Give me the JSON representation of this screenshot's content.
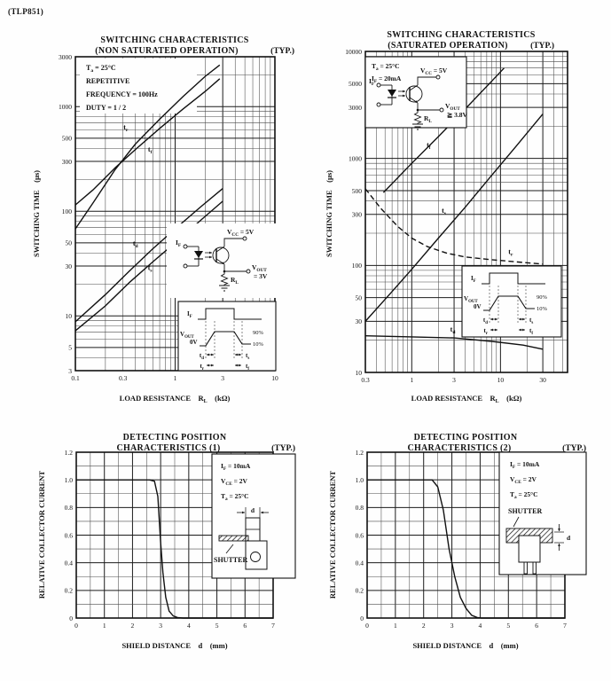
{
  "page": {
    "part_number": "(TLP851)"
  },
  "chart_data": [
    {
      "id": "switching-non-saturated",
      "type": "line",
      "title_lines": [
        "SWITCHING CHARACTERISTICS",
        "(NON SATURATED OPERATION)"
      ],
      "typ_label": "(TYP.)",
      "xlabel": "LOAD RESISTANCE  R_{L}  (kΩ)",
      "ylabel": "SWITCHING TIME  (μs)",
      "axes": {
        "x_scale": "log",
        "y_scale": "log",
        "xlim": [
          0.1,
          10
        ],
        "ylim": [
          3,
          3000
        ],
        "x_ticks": [
          [
            0.1,
            "0.1"
          ],
          [
            0.3,
            "0.3"
          ],
          [
            1,
            "1"
          ],
          [
            3,
            "3"
          ],
          [
            10,
            "10"
          ]
        ],
        "y_ticks": [
          [
            3,
            "3"
          ],
          [
            5,
            "5"
          ],
          [
            10,
            "10"
          ],
          [
            30,
            "30"
          ],
          [
            50,
            "50"
          ],
          [
            100,
            "100"
          ],
          [
            300,
            "300"
          ],
          [
            500,
            "500"
          ],
          [
            1000,
            "1000"
          ],
          [
            3000,
            "3000"
          ]
        ],
        "grid": "on"
      },
      "conditions": [
        "T_{a} = 25°C",
        "REPETITIVE",
        "FREQUENCY = 100Hz",
        "DUTY = 1 / 2"
      ],
      "series": [
        {
          "name": "t_{f}",
          "points": [
            [
              0.1,
              115
            ],
            [
              0.15,
              160
            ],
            [
              0.25,
              260
            ],
            [
              0.4,
              390
            ],
            [
              0.7,
              620
            ],
            [
              1.2,
              950
            ],
            [
              2,
              1400
            ],
            [
              2.8,
              1850
            ]
          ]
        },
        {
          "name": "t_{r}",
          "points": [
            [
              0.1,
              68
            ],
            [
              0.15,
              120
            ],
            [
              0.25,
              250
            ],
            [
              0.4,
              440
            ],
            [
              0.7,
              760
            ],
            [
              1.2,
              1250
            ],
            [
              2,
              1950
            ],
            [
              2.8,
              2500
            ]
          ]
        },
        {
          "name": "t_{d}",
          "points": [
            [
              0.1,
              8.8
            ],
            [
              0.2,
              16
            ],
            [
              0.35,
              27
            ],
            [
              0.6,
              44
            ],
            [
              1,
              68
            ],
            [
              1.8,
              110
            ],
            [
              3,
              165
            ]
          ]
        },
        {
          "name": "t_{s}",
          "points": [
            [
              0.1,
              7.2
            ],
            [
              0.2,
              12.5
            ],
            [
              0.35,
              21
            ],
            [
              0.6,
              33
            ],
            [
              1,
              50
            ],
            [
              1.8,
              82
            ],
            [
              3,
              125
            ]
          ]
        }
      ],
      "curve_labels": [
        {
          "text": "t_{r}",
          "x": 0.32,
          "y": 640
        },
        {
          "text": "t_{f}",
          "x": 0.56,
          "y": 395
        },
        {
          "text": "t_{d}",
          "x": 0.4,
          "y": 50
        },
        {
          "text": "t_{s}",
          "x": 0.56,
          "y": 29
        }
      ],
      "insets": {
        "circuit": {
          "if": "I_{F}",
          "vcc": "V_{CC} = 5V",
          "vout1": "V_{OUT}",
          "vout2": "= 3V",
          "rl": "R_{L}"
        },
        "timing": {
          "if": "I_{F}",
          "vout": "V_{OUT}",
          "zero": "0V",
          "p90": "90%",
          "p10": "10%",
          "td": "t_{d}",
          "ts": "t_{s}",
          "tr": "t_{r}",
          "tf": "t_{f}"
        }
      }
    },
    {
      "id": "switching-saturated",
      "type": "line",
      "title_lines": [
        "SWITCHING CHARACTERISTICS",
        "(SATURATED OPERATION)"
      ],
      "typ_label": "(TYP.)",
      "xlabel": "LOAD RESISTANCE  R_{L}  (kΩ)",
      "ylabel": "SWITCHING TIME  (μs)",
      "axes": {
        "x_scale": "log",
        "y_scale": "log",
        "xlim": [
          0.3,
          57
        ],
        "ylim": [
          10,
          10000
        ],
        "x_ticks": [
          [
            0.3,
            "0.3"
          ],
          [
            1,
            "1"
          ],
          [
            3,
            "3"
          ],
          [
            10,
            "10"
          ],
          [
            30,
            "30"
          ]
        ],
        "y_ticks": [
          [
            10,
            "10"
          ],
          [
            30,
            "30"
          ],
          [
            50,
            "50"
          ],
          [
            100,
            "100"
          ],
          [
            300,
            "300"
          ],
          [
            500,
            "500"
          ],
          [
            1000,
            "1000"
          ],
          [
            3000,
            "3000"
          ],
          [
            5000,
            "5000"
          ],
          [
            10000,
            "10000"
          ]
        ],
        "grid": "on"
      },
      "conditions": [],
      "series": [
        {
          "name": "t_{f}",
          "points": [
            [
              0.48,
              480
            ],
            [
              1,
              900
            ],
            [
              2,
              1600
            ],
            [
              4,
              2900
            ],
            [
              8,
              5300
            ],
            [
              11,
              7000
            ]
          ]
        },
        {
          "name": "t_{s}",
          "points": [
            [
              0.3,
              30
            ],
            [
              0.6,
              57
            ],
            [
              1,
              92
            ],
            [
              2,
              180
            ],
            [
              4,
              350
            ],
            [
              8,
              700
            ],
            [
              15,
              1300
            ],
            [
              30,
              2600
            ]
          ]
        },
        {
          "name": "t_{r}",
          "dashed": true,
          "points": [
            [
              0.3,
              520
            ],
            [
              0.45,
              340
            ],
            [
              0.7,
              230
            ],
            [
              1,
              180
            ],
            [
              1.5,
              150
            ],
            [
              2.5,
              130
            ],
            [
              4,
              120
            ],
            [
              8,
              113
            ],
            [
              15,
              108
            ],
            [
              30,
              103
            ]
          ]
        },
        {
          "name": "t_{d}",
          "points": [
            [
              0.3,
              22
            ],
            [
              1,
              21.5
            ],
            [
              3,
              21
            ],
            [
              8,
              19.5
            ],
            [
              18,
              18
            ],
            [
              30,
              16.5
            ]
          ]
        }
      ],
      "curve_labels": [
        {
          "text": "t_{f}",
          "x": 1.55,
          "y": 1350
        },
        {
          "text": "t_{s}",
          "x": 2.3,
          "y": 330
        },
        {
          "text": "t_{r}",
          "x": 13,
          "y": 135
        },
        {
          "text": "t_{d}",
          "x": 2.9,
          "y": 25.5
        }
      ],
      "insets": {
        "circuit": {
          "conditions": [
            "T_{a} = 25°C",
            "I_{F} = 20mA"
          ],
          "if": "I_{F}",
          "vcc": "V_{CC} = 5V",
          "vout1": "V_{OUT}",
          "vout2": "≧ 3.8V",
          "rl": "R_{L}"
        },
        "timing": {
          "if": "I_{F}",
          "vout": "V_{OUT}",
          "zero": "0V",
          "p90": "90%",
          "p10": "10%",
          "td": "t_{d}",
          "ts": "t_{s}",
          "tr": "t_{r}",
          "tf": "t_{f}"
        }
      }
    },
    {
      "id": "detecting-position-1",
      "type": "line",
      "title_lines": [
        "DETECTING POSITION",
        "CHARACTERISTICS (1)"
      ],
      "typ_label": "(TYP.)",
      "xlabel": "SHIELD DISTANCE  d  (mm)",
      "ylabel": "RELATIVE COLLECTOR CURRENT",
      "axes": {
        "x_scale": "linear",
        "y_scale": "linear",
        "xlim": [
          0,
          7
        ],
        "ylim": [
          0,
          1.2
        ],
        "x_minor": 0.5,
        "y_minor": 0.1,
        "x_ticks": [
          [
            0,
            "0"
          ],
          [
            1,
            "1"
          ],
          [
            2,
            "2"
          ],
          [
            3,
            "3"
          ],
          [
            4,
            "4"
          ],
          [
            5,
            "5"
          ],
          [
            6,
            "6"
          ],
          [
            7,
            "7"
          ]
        ],
        "y_ticks": [
          [
            0,
            "0"
          ],
          [
            0.2,
            "0.2"
          ],
          [
            0.4,
            "0.4"
          ],
          [
            0.6,
            "0.6"
          ],
          [
            0.8,
            "0.8"
          ],
          [
            1,
            "1.0"
          ],
          [
            1.2,
            "1.2"
          ]
        ],
        "grid": "on"
      },
      "conditions": [],
      "series": [
        {
          "name": "relative collector current",
          "points": [
            [
              0,
              1
            ],
            [
              2.6,
              1
            ],
            [
              2.78,
              0.99
            ],
            [
              2.9,
              0.88
            ],
            [
              3.0,
              0.55
            ],
            [
              3.08,
              0.33
            ],
            [
              3.18,
              0.15
            ],
            [
              3.3,
              0.05
            ],
            [
              3.45,
              0.015
            ],
            [
              3.6,
              0.004
            ],
            [
              3.8,
              0
            ],
            [
              7,
              0
            ]
          ]
        }
      ],
      "curve_labels": [],
      "insets": {
        "shutter": {
          "conditions": [
            "I_{F} = 10mA",
            "V_{CE} = 2V",
            "T_{a} = 25°C"
          ],
          "label": "SHUTTER",
          "d": "d"
        }
      }
    },
    {
      "id": "detecting-position-2",
      "type": "line",
      "title_lines": [
        "DETECTING POSITION",
        "CHARACTERISTICS (2)"
      ],
      "typ_label": "(TYP.)",
      "xlabel": "SHIELD DISTANCE  d  (mm)",
      "ylabel": "RELATIVE COLLECTOR CURRENT",
      "axes": {
        "x_scale": "linear",
        "y_scale": "linear",
        "xlim": [
          0,
          7
        ],
        "ylim": [
          0,
          1.2
        ],
        "x_minor": 0.5,
        "y_minor": 0.1,
        "x_ticks": [
          [
            0,
            "0"
          ],
          [
            1,
            "1"
          ],
          [
            2,
            "2"
          ],
          [
            3,
            "3"
          ],
          [
            4,
            "4"
          ],
          [
            5,
            "5"
          ],
          [
            6,
            "6"
          ],
          [
            7,
            "7"
          ]
        ],
        "y_ticks": [
          [
            0,
            "0"
          ],
          [
            0.2,
            "0.2"
          ],
          [
            0.4,
            "0.4"
          ],
          [
            0.6,
            "0.6"
          ],
          [
            0.8,
            "0.8"
          ],
          [
            1,
            "1.0"
          ],
          [
            1.2,
            "1.2"
          ]
        ],
        "grid": "on"
      },
      "conditions": [],
      "series": [
        {
          "name": "relative collector current",
          "points": [
            [
              0,
              1
            ],
            [
              2.3,
              1
            ],
            [
              2.5,
              0.95
            ],
            [
              2.7,
              0.78
            ],
            [
              2.9,
              0.5
            ],
            [
              3.1,
              0.3
            ],
            [
              3.3,
              0.15
            ],
            [
              3.5,
              0.07
            ],
            [
              3.7,
              0.02
            ],
            [
              3.9,
              0.004
            ],
            [
              4.05,
              0
            ],
            [
              7,
              0
            ]
          ]
        }
      ],
      "curve_labels": [],
      "insets": {
        "shutter": {
          "conditions": [
            "I_{F} = 10mA",
            "V_{CE} = 2V",
            "T_{a} = 25°C"
          ],
          "label": "SHUTTER",
          "d": "d"
        }
      }
    }
  ]
}
